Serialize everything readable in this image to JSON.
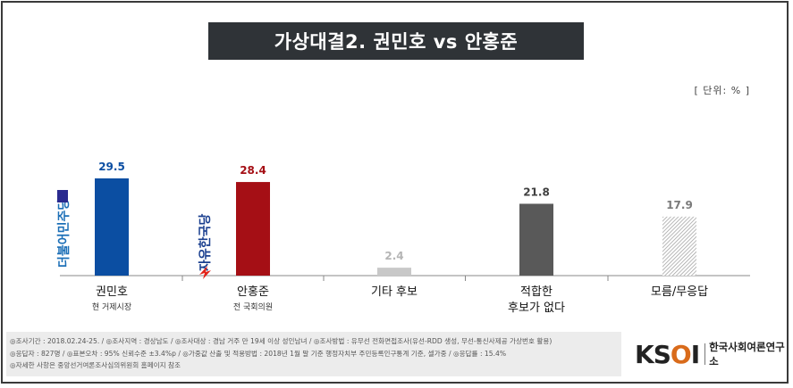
{
  "title": "가상대결2. 권민호 vs 안홍준",
  "unit": "[ 단위: % ]",
  "chart_data": {
    "type": "bar",
    "categories": [
      "권민호",
      "안홍준",
      "기타 후보",
      "적합한 후보가 없다",
      "모름/무응답"
    ],
    "category_lines": [
      [
        "권민호"
      ],
      [
        "안홍준"
      ],
      [
        "기타 후보"
      ],
      [
        "적합한",
        "후보가 없다"
      ],
      [
        "모름/무응답"
      ]
    ],
    "sublabels": [
      "현 거제시장",
      "전 국회의원",
      "",
      "",
      ""
    ],
    "values": [
      29.5,
      28.4,
      2.4,
      21.8,
      17.9
    ],
    "value_labels": [
      "29.5",
      "28.4",
      "2.4",
      "21.8",
      "17.9"
    ],
    "bar_colors": [
      "#0b4ea2",
      "#a50f15",
      "#c8c8c8",
      "#595959",
      "hatch"
    ],
    "label_colors": [
      "#0b4ea2",
      "#a50f15",
      "#b5b5b5",
      "#404040",
      "#7a7a7a"
    ],
    "party_logos": [
      "더불어민주당",
      "자유한국당",
      "",
      "",
      ""
    ],
    "ylim": [
      0,
      35
    ],
    "grid": false
  },
  "footer": {
    "line1": "◎조사기간 : 2018.02.24-25.  / ◎조사지역 : 경상남도 / ◎조사대상 : 경남 거주 만 19세 이상 성인남녀 / ◎조사방법 : 유무선 전화면접조사(유선-RDD 생성, 무선-통신사제공 가상번호 활용)",
    "line2": "◎응답자 : 827명 / ◎표본오차 : 95% 신뢰수준 ±3.4%p / ◎가중값 산출 및 적용방법 : 2018년 1월 말 기준 행정자치부 주민등록인구통계 기준, 셀가중 / ◎응답률 : 15.4%",
    "line3": "◎자세한 사항은 중앙선거여론조사심의위원회 홈페이지 참조"
  },
  "logo": {
    "mark": "KSOI",
    "text": "한국사회여론연구소"
  }
}
